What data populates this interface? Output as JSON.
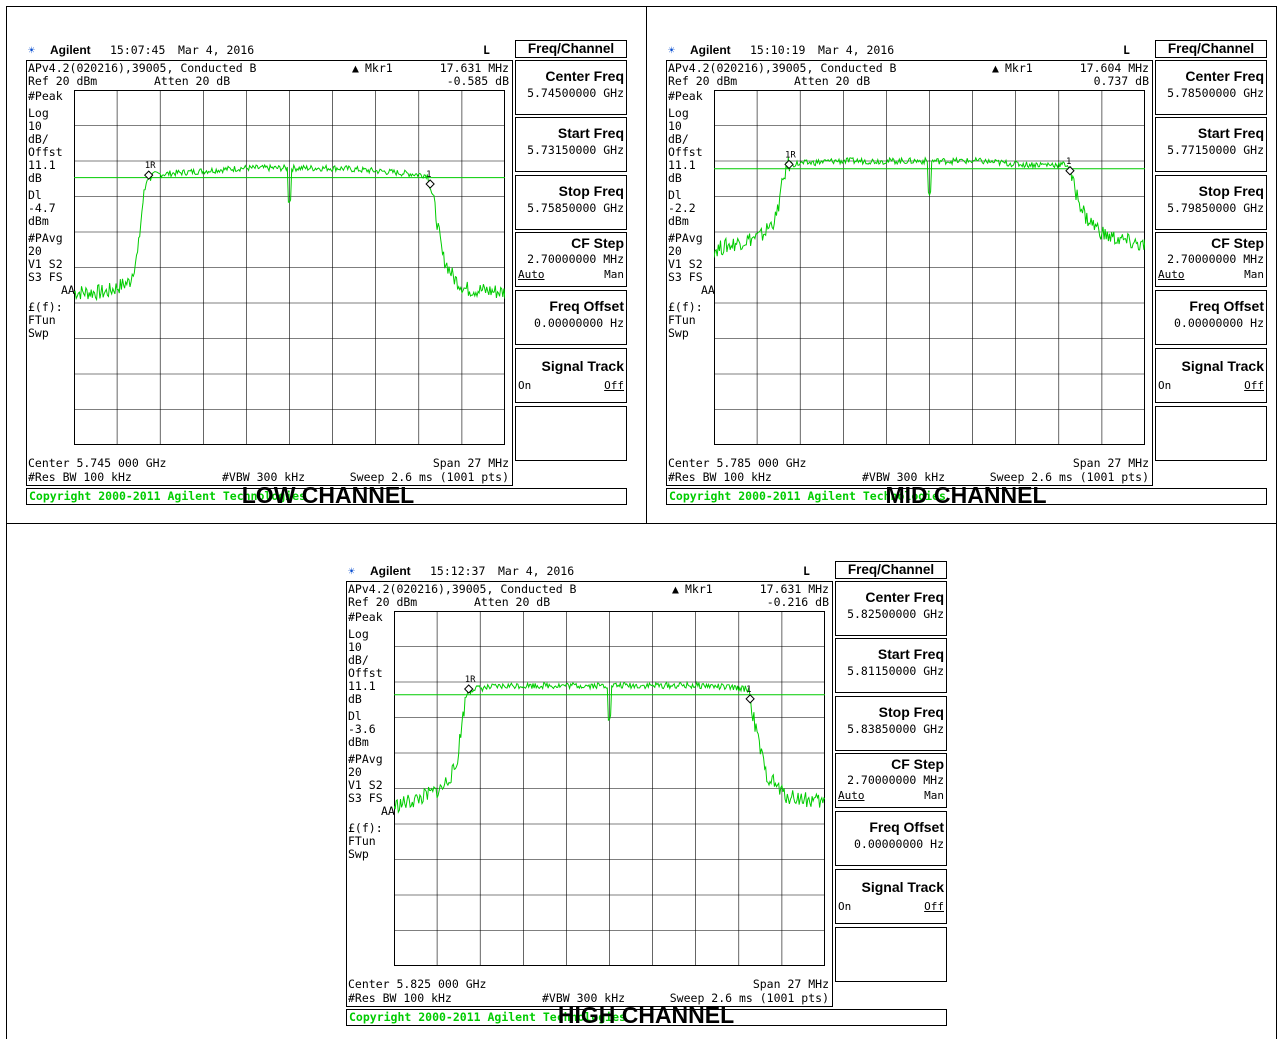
{
  "chart_data": [
    {
      "type": "line",
      "caption": "LOW CHANNEL",
      "header": {
        "brand": "Agilent",
        "time": "15:07:45",
        "date": "Mar 4, 2016",
        "indicator": "L",
        "line2": "APv4.2(020216),39005, Conducted B",
        "mkr": "Mkr1",
        "mkr_freq": "17.631 MHz",
        "ref": "Ref 20 dBm",
        "atten": "Atten 20 dB",
        "mkr_delta": "-0.585 dB"
      },
      "left_labels": [
        "#Peak",
        "Log",
        "10",
        "dB/",
        "Offst",
        "11.1",
        "dB",
        "Dl",
        "-4.7",
        "dBm",
        "#PAvg",
        "20",
        "V1  S2",
        "S3  FS",
        "AA",
        "£(f):",
        "FTun",
        "Swp"
      ],
      "footer": {
        "center": "Center 5.745 000 GHz",
        "span": "Span 27 MHz",
        "rbw": "#Res BW 100 kHz",
        "vbw": "#VBW 300 kHz",
        "sweep": "Sweep 2.6 ms (1001 pts)"
      },
      "softkeys": {
        "title": "Freq/Channel",
        "center_label": "Center Freq",
        "center_val": "5.74500000 GHz",
        "start_label": "Start Freq",
        "start_val": "5.73150000 GHz",
        "stop_label": "Stop Freq",
        "stop_val": "5.75850000 GHz",
        "cfstep_label": "CF Step",
        "cfstep_val": "2.70000000 MHz",
        "cfstep_auto": "Auto",
        "cfstep_man": "Man",
        "offset_label": "Freq Offset",
        "offset_val": "0.00000000  Hz",
        "track_label": "Signal Track",
        "track_on": "On",
        "track_off": "Off"
      },
      "copyright": "Copyright 2000-2011 Agilent Technologies",
      "xlim_mhz": [
        -13.5,
        13.5
      ],
      "ylim_dB": [
        -80,
        20
      ],
      "display_line_dBm": -4.7,
      "markers": [
        {
          "label": "1R",
          "x_mhz": -8.82
        },
        {
          "label": "1",
          "x_mhz": 8.81
        }
      ],
      "series": [
        {
          "x_mhz": [
            -13.5,
            -11.5,
            -10,
            -9.5,
            -9.2,
            -8.9,
            -6,
            -3,
            0,
            3,
            6,
            8.7,
            9.1,
            9.6,
            10.3,
            11,
            13.5
          ],
          "y_dB": [
            -37,
            -37,
            -34,
            -26,
            -12,
            -4,
            -3,
            -2,
            -2,
            -2,
            -3,
            -4,
            -13,
            -27,
            -33,
            -36,
            -37
          ]
        }
      ]
    },
    {
      "type": "line",
      "caption": "MID CHANNEL",
      "header": {
        "brand": "Agilent",
        "time": "15:10:19",
        "date": "Mar 4, 2016",
        "indicator": "L",
        "line2": "APv4.2(020216),39005, Conducted B",
        "mkr": "Mkr1",
        "mkr_freq": "17.604 MHz",
        "ref": "Ref 20 dBm",
        "atten": "Atten 20 dB",
        "mkr_delta": "0.737 dB"
      },
      "left_labels": [
        "#Peak",
        "Log",
        "10",
        "dB/",
        "Offst",
        "11.1",
        "dB",
        "Dl",
        "-2.2",
        "dBm",
        "#PAvg",
        "20",
        "V1  S2",
        "S3  FS",
        "AA",
        "£(f):",
        "FTun",
        "Swp"
      ],
      "footer": {
        "center": "Center 5.785 000 GHz",
        "span": "Span 27 MHz",
        "rbw": "#Res BW 100 kHz",
        "vbw": "#VBW 300 kHz",
        "sweep": "Sweep 2.6 ms (1001 pts)"
      },
      "softkeys": {
        "title": "Freq/Channel",
        "center_label": "Center Freq",
        "center_val": "5.78500000 GHz",
        "start_label": "Start Freq",
        "start_val": "5.77150000 GHz",
        "stop_label": "Stop Freq",
        "stop_val": "5.79850000 GHz",
        "cfstep_label": "CF Step",
        "cfstep_val": "2.70000000 MHz",
        "cfstep_auto": "Auto",
        "cfstep_man": "Man",
        "offset_label": "Freq Offset",
        "offset_val": "0.00000000  Hz",
        "track_label": "Signal Track",
        "track_on": "On",
        "track_off": "Off"
      },
      "copyright": "Copyright 2000-2011 Agilent Technologies",
      "xlim_mhz": [
        -13.5,
        13.5
      ],
      "ylim_dB": [
        -80,
        20
      ],
      "display_line_dBm": -2.2,
      "markers": [
        {
          "label": "1R",
          "x_mhz": -8.8
        },
        {
          "label": "1",
          "x_mhz": 8.8
        }
      ],
      "series": [
        {
          "x_mhz": [
            -13.5,
            -12,
            -10.5,
            -9.6,
            -9.2,
            -8.9,
            -6,
            -3,
            0,
            3,
            6,
            8.7,
            9.1,
            9.8,
            11,
            13.5
          ],
          "y_dB": [
            -25,
            -23,
            -21,
            -16,
            -6,
            -1,
            0,
            0,
            0,
            0,
            -1,
            -1,
            -8,
            -16,
            -21,
            -24
          ]
        }
      ]
    },
    {
      "type": "line",
      "caption": "HIGH CHANNEL",
      "header": {
        "brand": "Agilent",
        "time": "15:12:37",
        "date": "Mar 4, 2016",
        "indicator": "L",
        "line2": "APv4.2(020216),39005, Conducted B",
        "mkr": "Mkr1",
        "mkr_freq": "17.631 MHz",
        "ref": "Ref 20 dBm",
        "atten": "Atten 20 dB",
        "mkr_delta": "-0.216 dB"
      },
      "left_labels": [
        "#Peak",
        "Log",
        "10",
        "dB/",
        "Offst",
        "11.1",
        "dB",
        "Dl",
        "-3.6",
        "dBm",
        "#PAvg",
        "20",
        "V1  S2",
        "S3  FS",
        "AA",
        "£(f):",
        "FTun",
        "Swp"
      ],
      "footer": {
        "center": "Center 5.825 000 GHz",
        "span": "Span 27 MHz",
        "rbw": "#Res BW 100 kHz",
        "vbw": "#VBW 300 kHz",
        "sweep": "Sweep 2.6 ms (1001 pts)"
      },
      "softkeys": {
        "title": "Freq/Channel",
        "center_label": "Center Freq",
        "center_val": "5.82500000 GHz",
        "start_label": "Start Freq",
        "start_val": "5.81150000 GHz",
        "stop_label": "Stop Freq",
        "stop_val": "5.83850000 GHz",
        "cfstep_label": "CF Step",
        "cfstep_val": "2.70000000 MHz",
        "cfstep_auto": "Auto",
        "cfstep_man": "Man",
        "offset_label": "Freq Offset",
        "offset_val": "0.00000000  Hz",
        "track_label": "Signal Track",
        "track_on": "On",
        "track_off": "Off"
      },
      "copyright": "Copyright 2000-2011 Agilent Technologies",
      "xlim_mhz": [
        -13.5,
        13.5
      ],
      "ylim_dB": [
        -80,
        20
      ],
      "display_line_dBm": -3.6,
      "markers": [
        {
          "label": "1R",
          "x_mhz": -8.82
        },
        {
          "label": "1",
          "x_mhz": 8.81
        }
      ],
      "series": [
        {
          "x_mhz": [
            -13.5,
            -12,
            -10.5,
            -9.6,
            -9.2,
            -8.9,
            -6,
            -3,
            0,
            3,
            6,
            8.7,
            9.1,
            9.8,
            11,
            13.5
          ],
          "y_dB": [
            -35,
            -33,
            -30,
            -24,
            -10,
            -2,
            -1,
            -1,
            -1,
            -1,
            -1,
            -2,
            -12,
            -26,
            -32,
            -34
          ]
        }
      ]
    }
  ]
}
